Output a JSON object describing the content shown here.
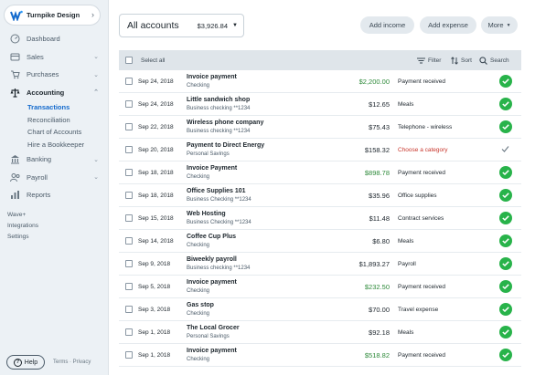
{
  "business": {
    "name": "Turnpike Design"
  },
  "sidebar": {
    "items": [
      {
        "label": "Dashboard",
        "icon": "dashboard-icon"
      },
      {
        "label": "Sales",
        "icon": "sales-icon",
        "caret": "⌄"
      },
      {
        "label": "Purchases",
        "icon": "cart-icon",
        "caret": "⌄"
      },
      {
        "label": "Accounting",
        "icon": "scale-icon",
        "caret": "⌃"
      },
      {
        "label": "Banking",
        "icon": "bank-icon",
        "caret": "⌄"
      },
      {
        "label": "Payroll",
        "icon": "payroll-icon",
        "caret": "⌄"
      },
      {
        "label": "Reports",
        "icon": "reports-icon"
      }
    ],
    "sub_items": [
      "Transactions",
      "Reconciliation",
      "Chart of Accounts",
      "Hire a Bookkeeper"
    ],
    "misc": [
      "Wave+",
      "Integrations",
      "Settings"
    ],
    "help": "Help",
    "legal": "Terms · Privacy"
  },
  "header": {
    "account_title": "All accounts",
    "account_balance": "$3,926.84",
    "add_income": "Add income",
    "add_expense": "Add expense",
    "more": "More"
  },
  "table": {
    "select_all": "Select all",
    "filter": "Filter",
    "sort": "Sort",
    "search": "Search",
    "rows": [
      {
        "date": "Sep 24, 2018",
        "desc": "Invoice payment",
        "account": "Checking",
        "amount": "$2,200.00",
        "positive": true,
        "category": "Payment received",
        "status": "approved"
      },
      {
        "date": "Sep 24, 2018",
        "desc": "Little sandwich shop",
        "account": "Business checking **1234",
        "amount": "$12.65",
        "positive": false,
        "category": "Meals",
        "status": "approved"
      },
      {
        "date": "Sep 22, 2018",
        "desc": "Wireless phone company",
        "account": "Business checking **1234",
        "amount": "$75.43",
        "positive": false,
        "category": "Telephone - wireless",
        "status": "approved"
      },
      {
        "date": "Sep 20, 2018",
        "desc": "Payment to Direct Energy",
        "account": "Personal Savings",
        "amount": "$158.32",
        "positive": false,
        "category": "Choose a category",
        "status": "pending"
      },
      {
        "date": "Sep 18, 2018",
        "desc": "Invoice Payment",
        "account": "Checking",
        "amount": "$898.78",
        "positive": true,
        "category": "Payment received",
        "status": "approved"
      },
      {
        "date": "Sep 18, 2018",
        "desc": "Office Supplies 101",
        "account": "Business Checking **1234",
        "amount": "$35.96",
        "positive": false,
        "category": "Office supplies",
        "status": "approved"
      },
      {
        "date": "Sep 15, 2018",
        "desc": "Web Hosting",
        "account": "Business Checking **1234",
        "amount": "$11.48",
        "positive": false,
        "category": "Contract services",
        "status": "approved"
      },
      {
        "date": "Sep 14, 2018",
        "desc": "Coffee Cup Plus",
        "account": "Checking",
        "amount": "$6.80",
        "positive": false,
        "category": "Meals",
        "status": "approved"
      },
      {
        "date": "Sep 9, 2018",
        "desc": "Biweekly payroll",
        "account": "Business checking **1234",
        "amount": "$1,893.27",
        "positive": false,
        "category": "Payroll",
        "status": "approved"
      },
      {
        "date": "Sep 5, 2018",
        "desc": "Invoice payment",
        "account": "Checking",
        "amount": "$232.50",
        "positive": true,
        "category": "Payment received",
        "status": "approved"
      },
      {
        "date": "Sep 3, 2018",
        "desc": "Gas stop",
        "account": "Checking",
        "amount": "$70.00",
        "positive": false,
        "category": "Travel expense",
        "status": "approved"
      },
      {
        "date": "Sep 1, 2018",
        "desc": "The Local Grocer",
        "account": "Personal Savings",
        "amount": "$92.18",
        "positive": false,
        "category": "Meals",
        "status": "approved"
      },
      {
        "date": "Sep 1, 2018",
        "desc": "Invoice payment",
        "account": "Checking",
        "amount": "$518.82",
        "positive": true,
        "category": "Payment received",
        "status": "approved"
      }
    ]
  },
  "colors": {
    "accent": "#136acd",
    "positive": "#2e8a3a",
    "warning": "#c8352b",
    "approved": "#28b34a"
  }
}
